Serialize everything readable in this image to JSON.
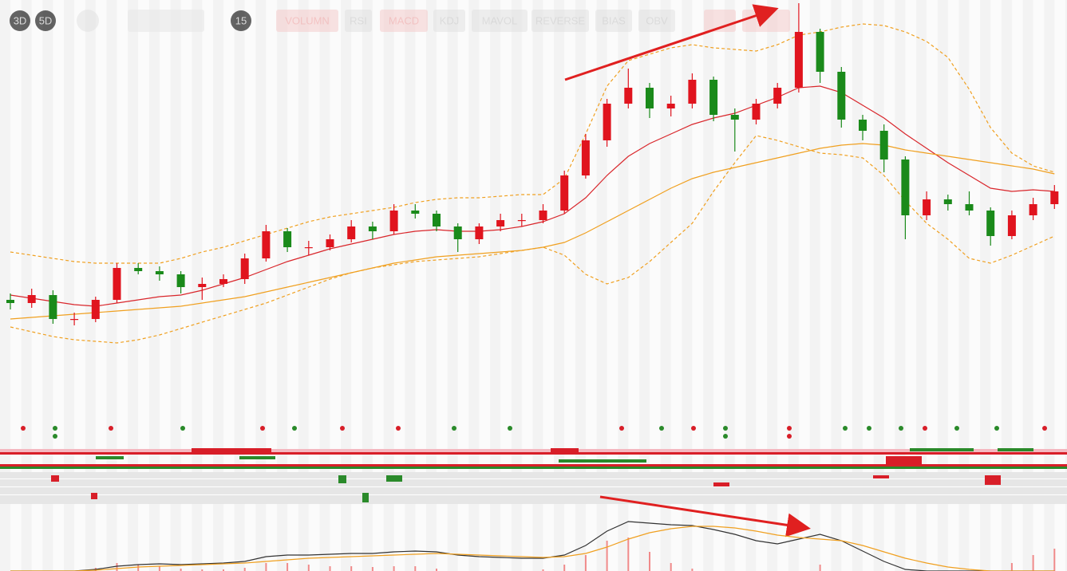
{
  "toolbar": {
    "buttons": [
      "3D",
      "5D",
      "15",
      "VOLUMN",
      "RSI",
      "MACD",
      "KDJ",
      "MAVOL",
      "REVERSE",
      "BIAS",
      "OBV"
    ]
  },
  "chart_data": [
    {
      "type": "candlestick",
      "ylim": [
        0,
        110
      ],
      "up_color": "#e0141e",
      "down_color": "#1a8a1a",
      "open": [
        16,
        15,
        17.5,
        10,
        10,
        16,
        26,
        25,
        24,
        20,
        21,
        22.5,
        29,
        37.5,
        32.5,
        32.5,
        35,
        39,
        37.5,
        44,
        43,
        39,
        35,
        39,
        41,
        41,
        44,
        55,
        66,
        77.5,
        82.5,
        76,
        77.5,
        85,
        74,
        72.5,
        77.5,
        82.5,
        100,
        87.5,
        72.5,
        69,
        60,
        42.5,
        47.5,
        46,
        44,
        36,
        42.5,
        46
      ],
      "high": [
        18,
        19.5,
        19,
        12,
        17,
        27.5,
        27.5,
        26.5,
        25,
        23,
        24,
        30.5,
        39.5,
        38.5,
        34.5,
        36.5,
        41,
        40.5,
        46,
        46,
        44,
        40,
        40,
        43,
        43,
        46,
        56.5,
        68,
        79,
        88.5,
        84,
        80,
        87,
        86,
        76,
        79,
        84,
        109,
        101,
        89,
        74,
        71,
        61,
        50,
        49,
        50,
        45,
        44,
        48,
        52
      ],
      "low": [
        13,
        13.5,
        8.5,
        8,
        9,
        15,
        24,
        22,
        18,
        16,
        20,
        21,
        28,
        31,
        30,
        31.5,
        34,
        35,
        36.5,
        41.5,
        37.5,
        31,
        33.5,
        37.5,
        39,
        40,
        43,
        54,
        64,
        76,
        73,
        73.5,
        76,
        72,
        62.5,
        71,
        76,
        81,
        84,
        70,
        66,
        56,
        35,
        41,
        44,
        42.5,
        33,
        35,
        41,
        44.5
      ],
      "close": [
        15,
        17.5,
        10,
        10,
        16,
        26,
        25,
        24,
        20,
        21,
        22.5,
        29,
        37.5,
        32.5,
        32.5,
        35,
        39,
        37.5,
        44,
        43,
        39,
        35,
        39,
        41,
        41,
        44,
        55,
        66,
        77.5,
        82.5,
        76,
        77.5,
        85,
        74,
        72.5,
        77.5,
        82.5,
        100,
        87.5,
        72.5,
        69,
        60,
        42.5,
        47.5,
        46,
        44,
        36,
        42.5,
        46,
        50
      ],
      "series": [
        {
          "color": "#d9262b",
          "values": [
            17.5,
            16.5,
            15.5,
            14.5,
            14,
            15,
            16,
            17,
            17.5,
            19,
            21,
            23,
            25.5,
            28,
            30,
            32,
            33.5,
            35,
            36.5,
            37.5,
            38,
            37.5,
            37.5,
            38,
            39,
            40.5,
            43,
            48,
            55,
            61,
            65,
            68,
            71,
            73,
            74.5,
            77,
            79.5,
            82.5,
            83,
            81,
            77,
            73,
            68,
            63.5,
            59,
            55,
            51,
            50,
            50.5,
            50
          ]
        },
        {
          "color": "#f0a020",
          "values": [
            10,
            10.5,
            11,
            11.5,
            12,
            12.5,
            13,
            13.5,
            14,
            15,
            16,
            17,
            18.5,
            20,
            21.5,
            23,
            24.5,
            26,
            27.5,
            28.5,
            29.5,
            30,
            30.5,
            31,
            31.5,
            32.5,
            34,
            37,
            40.5,
            44,
            47.5,
            51,
            54,
            56,
            57.5,
            59,
            60.5,
            62,
            63.5,
            64.5,
            65,
            64.5,
            63,
            62,
            61,
            60,
            59,
            58,
            57,
            55.5
          ]
        },
        {
          "color": "#f0a020",
          "dashed": true,
          "values": [
            31,
            30,
            29,
            28,
            27.5,
            27.5,
            27.5,
            27.5,
            29,
            31,
            32.5,
            34.5,
            36.5,
            38.5,
            40.5,
            42,
            43,
            44,
            45,
            46.5,
            47.5,
            48,
            48,
            48.5,
            49,
            49,
            54,
            68,
            83,
            91,
            93,
            95,
            96,
            95,
            94.5,
            94,
            96,
            99,
            100,
            101.5,
            102.5,
            102,
            100,
            97,
            92,
            82,
            70,
            62,
            58,
            56
          ]
        },
        {
          "color": "#f0a020",
          "dashed": true,
          "values": [
            7.5,
            6,
            4.5,
            3.5,
            3,
            2.5,
            3.5,
            5,
            7,
            9,
            11,
            13,
            15,
            17.5,
            20,
            22.5,
            24.5,
            26,
            27,
            28,
            28.5,
            29,
            29.5,
            30.5,
            31.5,
            32.5,
            30,
            24,
            21,
            23,
            28,
            34,
            40,
            50,
            59,
            67.5,
            66,
            64,
            62,
            61.5,
            60.5,
            55,
            47,
            40,
            35,
            29,
            27.5,
            30,
            33,
            36
          ]
        }
      ]
    },
    {
      "type": "macd",
      "ylim": [
        0,
        80
      ],
      "bars": {
        "color": "#f08a8a",
        "values": [
          0,
          0,
          0,
          0,
          4,
          10,
          8,
          6,
          3,
          2,
          2,
          4,
          10,
          10,
          8,
          6,
          6,
          5,
          6,
          6,
          3,
          0,
          0,
          0,
          0,
          2,
          8,
          20,
          38,
          42,
          24,
          10,
          3,
          0,
          0,
          0,
          0,
          0,
          8,
          0,
          0,
          0,
          0,
          0,
          0,
          0,
          0,
          10,
          20,
          28
        ]
      },
      "series": [
        {
          "color": "#333333",
          "values": [
            0,
            0,
            0,
            0,
            2,
            6,
            8,
            9,
            8,
            9,
            10,
            12,
            18,
            20,
            20,
            21,
            22,
            22,
            24,
            25,
            24,
            20,
            18,
            17,
            16,
            16,
            20,
            32,
            50,
            62,
            60,
            58,
            57,
            52,
            46,
            38,
            34,
            40,
            46,
            38,
            25,
            12,
            2,
            0,
            0,
            0,
            0,
            0,
            0,
            0
          ]
        },
        {
          "color": "#f0a020",
          "values": [
            0,
            0,
            0,
            0,
            1,
            3,
            5,
            6,
            7,
            8,
            9,
            10,
            12,
            14,
            16,
            17,
            18,
            19,
            20,
            21,
            22,
            21,
            20,
            19,
            18,
            17,
            18,
            22,
            30,
            40,
            48,
            53,
            56,
            56,
            54,
            50,
            45,
            42,
            40,
            38,
            32,
            24,
            16,
            10,
            5,
            2,
            0,
            0,
            0,
            0
          ]
        }
      ]
    }
  ]
}
